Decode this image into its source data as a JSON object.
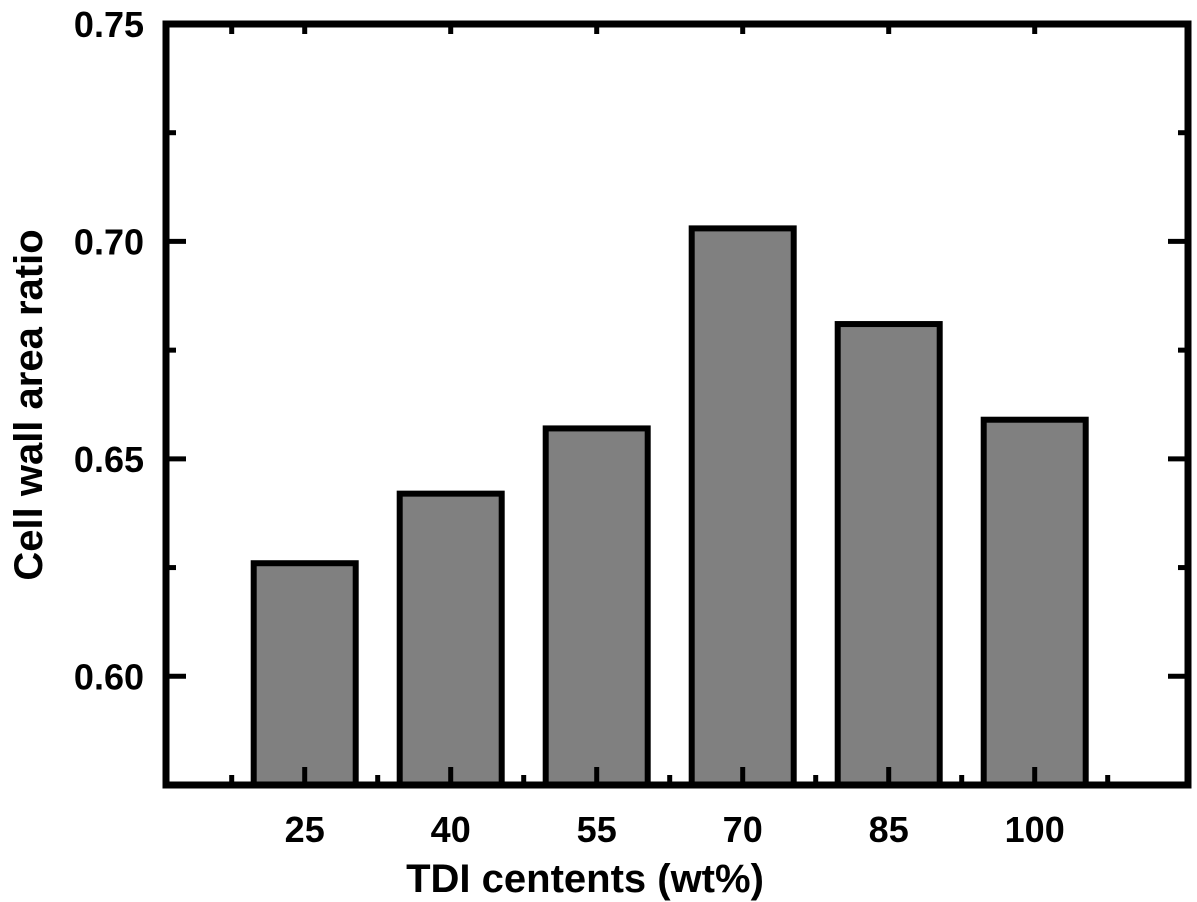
{
  "chart_data": {
    "type": "bar",
    "title": "",
    "xlabel": "TDI centents (wt%)",
    "ylabel": "Cell wall area ratio",
    "categories": [
      "25",
      "40",
      "55",
      "70",
      "85",
      "100"
    ],
    "values": [
      0.626,
      0.642,
      0.657,
      0.703,
      0.681,
      0.659
    ],
    "ylim": [
      0.575,
      0.75
    ],
    "yticks": [
      0.6,
      0.65,
      0.7,
      0.75
    ],
    "ytick_labels": [
      "0.60",
      "0.65",
      "0.70",
      "0.75"
    ],
    "y_minor_step": 0.025,
    "grid": false,
    "legend": "none",
    "bar_color": "#808080",
    "edge_color": "#000000"
  }
}
